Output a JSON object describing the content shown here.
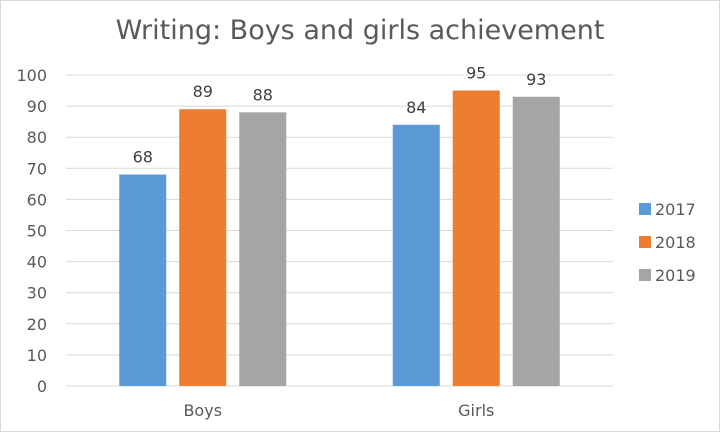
{
  "chart_data": {
    "type": "bar",
    "title": "Writing: Boys and girls achievement",
    "categories": [
      "Boys",
      "Girls"
    ],
    "series": [
      {
        "name": "2017",
        "values": [
          68,
          84
        ],
        "color": "#5b9bd5"
      },
      {
        "name": "2018",
        "values": [
          89,
          95
        ],
        "color": "#ed7d31"
      },
      {
        "name": "2019",
        "values": [
          88,
          93
        ],
        "color": "#a5a5a5"
      }
    ],
    "ylim": [
      0,
      100
    ],
    "yticks": [
      0,
      10,
      20,
      30,
      40,
      50,
      60,
      70,
      80,
      90,
      100
    ],
    "grid": true,
    "data_labels": true,
    "legend": "right"
  }
}
